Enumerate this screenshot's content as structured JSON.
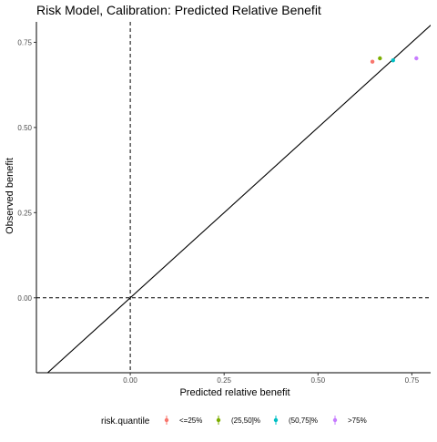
{
  "chart_data": {
    "type": "scatter",
    "title": "Risk Model, Calibration: Predicted Relative Benefit",
    "xlabel": "Predicted relative benefit",
    "ylabel": "Observed benefit",
    "xlim": [
      -0.25,
      0.8
    ],
    "ylim": [
      -0.22,
      0.81
    ],
    "x_ticks": [
      {
        "value": 0.0,
        "label": "0.00"
      },
      {
        "value": 0.25,
        "label": "0.25"
      },
      {
        "value": 0.5,
        "label": "0.50"
      },
      {
        "value": 0.75,
        "label": "0.75"
      }
    ],
    "y_ticks": [
      {
        "value": 0.0,
        "label": "0.00"
      },
      {
        "value": 0.25,
        "label": "0.25"
      },
      {
        "value": 0.5,
        "label": "0.50"
      },
      {
        "value": 0.75,
        "label": "0.75"
      }
    ],
    "grid": false,
    "reference_lines": {
      "vertical_dashed_x": 0,
      "horizontal_dashed_y": 0,
      "identity_line": true
    },
    "legend": {
      "title": "risk.quantile",
      "position": "bottom"
    },
    "series": [
      {
        "name": "<=25%",
        "color": "#F8766D",
        "x": [
          0.645
        ],
        "y": [
          0.693
        ]
      },
      {
        "name": "(25,50]%",
        "color": "#7CAE00",
        "x": [
          0.665
        ],
        "y": [
          0.703
        ]
      },
      {
        "name": "(50,75]%",
        "color": "#00BFC4",
        "x": [
          0.7
        ],
        "y": [
          0.697
        ]
      },
      {
        "name": ">75%",
        "color": "#C77CFF",
        "x": [
          0.762
        ],
        "y": [
          0.703
        ]
      }
    ]
  }
}
